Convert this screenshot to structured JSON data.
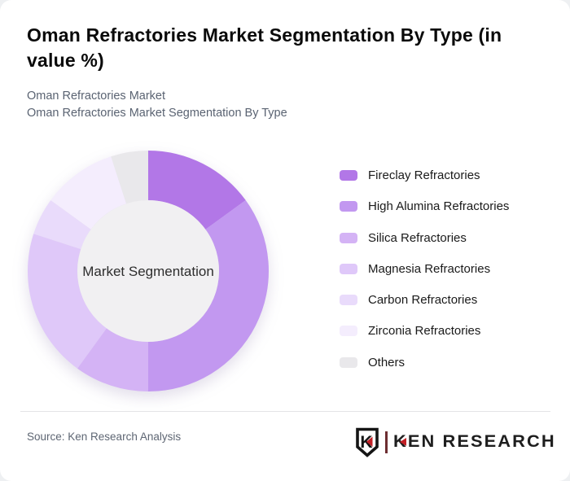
{
  "header": {
    "title": "Oman Refractories Market Segmentation By Type (in value %)",
    "subtitle_line1": "Oman Refractories Market",
    "subtitle_line2": "Oman Refractories Market Segmentation By Type"
  },
  "chart_data": {
    "type": "pie",
    "variant": "donut",
    "title": "Oman Refractories Market Segmentation By Type (in value %)",
    "center_label": "Market Segmentation",
    "legend_position": "right",
    "start_angle_deg": 0,
    "direction": "clockwise",
    "categories": [
      "Fireclay Refractories",
      "High Alumina Refractories",
      "Silica Refractories",
      "Magnesia Refractories",
      "Carbon Refractories",
      "Zirconia Refractories",
      "Others"
    ],
    "values": [
      15,
      35,
      10,
      20,
      5,
      10,
      5
    ],
    "unit": "% of market value",
    "colors": [
      "#b277e7",
      "#c298f0",
      "#d4b3f5",
      "#dfc8f9",
      "#e9dbfb",
      "#f4edfd",
      "#e9e8eb"
    ],
    "center_fill": "#f1f0f2"
  },
  "footer": {
    "source": "Source: Ken Research Analysis",
    "logo": {
      "badge_letter": "K",
      "text": "KEN RESEARCH",
      "accent_color": "#c22026",
      "divider_color": "#6d2e31"
    }
  }
}
